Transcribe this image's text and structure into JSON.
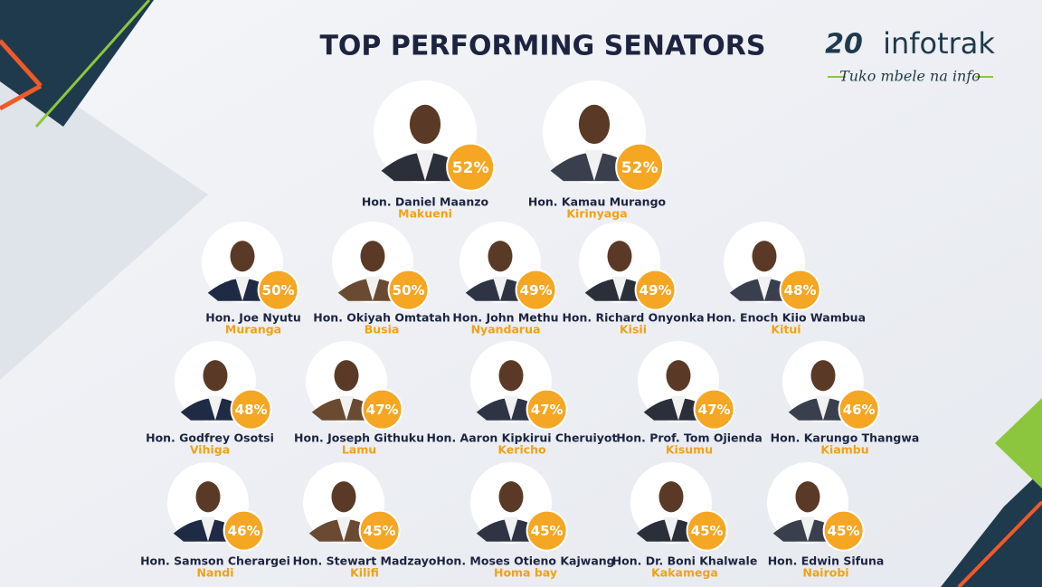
{
  "header": {
    "title": "TOP PERFORMING SENATORS",
    "logo_number": "20",
    "logo_name": "infotrak",
    "tagline": "Tuko mbele na info"
  },
  "senators": [
    {
      "name": "Hon. Daniel Maanzo",
      "county": "Makueni",
      "rating": "52%"
    },
    {
      "name": "Hon. Kamau Murango",
      "county": "Kirinyaga",
      "rating": "52%"
    },
    {
      "name": "Hon. Joe Nyutu",
      "county": "Muranga",
      "rating": "50%"
    },
    {
      "name": "Hon. Okiyah Omtatah",
      "county": "Busia",
      "rating": "50%"
    },
    {
      "name": "Hon. John Methu",
      "county": "Nyandarua",
      "rating": "49%"
    },
    {
      "name": "Hon. Richard Onyonka",
      "county": "Kisii",
      "rating": "49%"
    },
    {
      "name": "Hon. Enoch Kiio Wambua",
      "county": "Kitui",
      "rating": "48%"
    },
    {
      "name": "Hon. Godfrey Osotsi",
      "county": "Vihiga",
      "rating": "48%"
    },
    {
      "name": "Hon. Joseph Githuku",
      "county": "Lamu",
      "rating": "47%"
    },
    {
      "name": "Hon. Aaron Kipkirui Cheruiyot",
      "county": "Kericho",
      "rating": "47%"
    },
    {
      "name": "Hon. Prof. Tom Ojienda",
      "county": "Kisumu",
      "rating": "47%"
    },
    {
      "name": "Hon. Karungo Thangwa",
      "county": "Kiambu",
      "rating": "46%"
    },
    {
      "name": "Hon. Samson Cherargei",
      "county": "Nandi",
      "rating": "46%"
    },
    {
      "name": "Hon. Stewart  Madzayo",
      "county": "Kilifi",
      "rating": "45%"
    },
    {
      "name": "Hon. Moses Otieno Kajwang",
      "county": "Homa bay",
      "rating": "45%"
    },
    {
      "name": "Hon. Dr. Boni Khalwale",
      "county": "Kakamega",
      "rating": "45%"
    },
    {
      "name": "Hon. Edwin Sifuna",
      "county": "Nairobi",
      "rating": "45%"
    }
  ]
}
